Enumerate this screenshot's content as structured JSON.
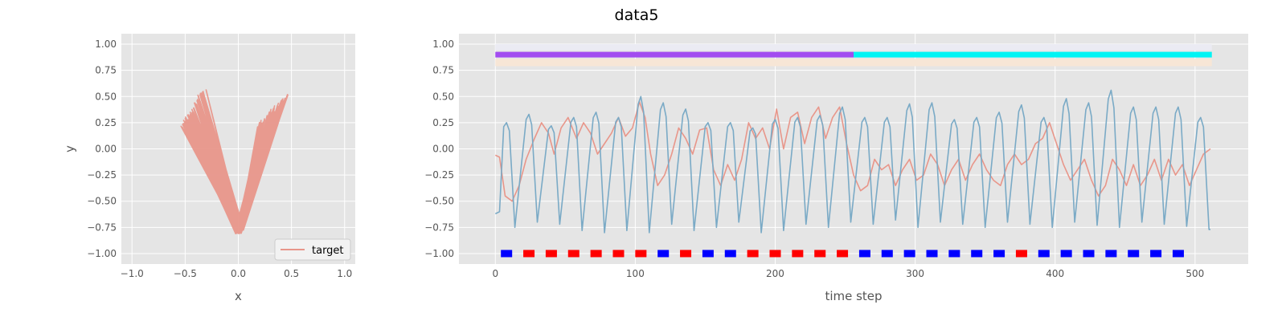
{
  "figure": {
    "title": "data5"
  },
  "colors": {
    "panel_bg": "#e5e5e5",
    "grid": "#ffffff",
    "target": "#e8968a",
    "series_blue": "#7aaac6",
    "phase_a": "#a24cf0",
    "phase_b": "#00f4f4",
    "band_top": "#ebebf3",
    "band_bottom": "#f7e6d6",
    "marker_red": "#ff0000",
    "marker_blue": "#0000ff"
  },
  "chart_data": [
    {
      "type": "line",
      "xlabel": "x",
      "ylabel": "y",
      "xlim": [
        -1.1,
        1.1
      ],
      "ylim": [
        -1.1,
        1.1
      ],
      "xticks": [
        "−1.0",
        "−0.5",
        "0.0",
        "0.5",
        "1.0"
      ],
      "yticks": [
        "−1.00",
        "−0.75",
        "−0.50",
        "−0.25",
        "0.00",
        "0.25",
        "0.50",
        "0.75",
        "1.00"
      ],
      "grid": true,
      "legend": {
        "placement": "lower-right",
        "entries": [
          "target"
        ]
      },
      "trajectory_summary": {
        "description_free": true,
        "left_arm_top_points": [
          [
            -0.52,
            0.26
          ],
          [
            -0.5,
            0.2
          ],
          [
            -0.42,
            0.4
          ],
          [
            -0.38,
            0.55
          ],
          [
            -0.35,
            0.45
          ]
        ],
        "vertex_points": [
          [
            0.0,
            -0.78
          ],
          [
            0.03,
            -0.8
          ],
          [
            -0.03,
            -0.7
          ]
        ],
        "right_arm_top_points": [
          [
            0.2,
            0.3
          ],
          [
            0.25,
            0.35
          ],
          [
            0.4,
            0.45
          ],
          [
            0.47,
            0.52
          ],
          [
            0.45,
            0.5
          ]
        ]
      },
      "series": [
        {
          "name": "target",
          "samples_x_range": [
            -0.52,
            0.47
          ],
          "samples_y_range": [
            -0.8,
            0.56
          ]
        }
      ]
    },
    {
      "type": "line",
      "xlabel": "time step",
      "ylabel": "",
      "xlim": [
        -26,
        538
      ],
      "ylim": [
        -1.1,
        1.1
      ],
      "xticks": [
        "0",
        "100",
        "200",
        "300",
        "400",
        "500"
      ],
      "yticks": [
        "−1.00",
        "−0.75",
        "−0.50",
        "−0.25",
        "0.00",
        "0.25",
        "0.50",
        "0.75",
        "1.00"
      ],
      "grid": true,
      "n_steps": 512,
      "phase_bar": {
        "y": 0.9,
        "segments": [
          {
            "from": 0,
            "to": 256,
            "color_key": "phase_a"
          },
          {
            "from": 256,
            "to": 512,
            "color_key": "phase_b"
          }
        ]
      },
      "bands": [
        {
          "from_y": 0.94,
          "to_y": 1.0,
          "color_key": "band_top"
        },
        {
          "from_y": 0.79,
          "to_y": 0.86,
          "color_key": "band_bottom"
        }
      ],
      "orange_series": {
        "name": "",
        "knots": [
          [
            0,
            -0.06
          ],
          [
            3,
            -0.08
          ],
          [
            7,
            -0.45
          ],
          [
            12,
            -0.5
          ],
          [
            17,
            -0.35
          ],
          [
            22,
            -0.1
          ],
          [
            28,
            0.1
          ],
          [
            33,
            0.25
          ],
          [
            38,
            0.15
          ],
          [
            42,
            -0.05
          ],
          [
            47,
            0.2
          ],
          [
            52,
            0.3
          ],
          [
            58,
            0.1
          ],
          [
            63,
            0.25
          ],
          [
            68,
            0.15
          ],
          [
            73,
            -0.05
          ],
          [
            78,
            0.05
          ],
          [
            83,
            0.15
          ],
          [
            88,
            0.3
          ],
          [
            93,
            0.12
          ],
          [
            98,
            0.2
          ],
          [
            103,
            0.45
          ],
          [
            107,
            0.3
          ],
          [
            111,
            -0.05
          ],
          [
            116,
            -0.35
          ],
          [
            121,
            -0.25
          ],
          [
            126,
            -0.05
          ],
          [
            131,
            0.2
          ],
          [
            136,
            0.1
          ],
          [
            141,
            -0.05
          ],
          [
            146,
            0.18
          ],
          [
            151,
            0.2
          ],
          [
            156,
            -0.2
          ],
          [
            161,
            -0.35
          ],
          [
            166,
            -0.15
          ],
          [
            171,
            -0.3
          ],
          [
            176,
            -0.1
          ],
          [
            181,
            0.25
          ],
          [
            186,
            0.1
          ],
          [
            191,
            0.2
          ],
          [
            196,
            0.0
          ],
          [
            201,
            0.38
          ],
          [
            206,
            0.0
          ],
          [
            211,
            0.3
          ],
          [
            216,
            0.35
          ],
          [
            221,
            0.05
          ],
          [
            226,
            0.3
          ],
          [
            231,
            0.4
          ],
          [
            236,
            0.1
          ],
          [
            241,
            0.3
          ],
          [
            246,
            0.4
          ],
          [
            251,
            0.05
          ],
          [
            256,
            -0.25
          ],
          [
            261,
            -0.4
          ],
          [
            266,
            -0.35
          ],
          [
            271,
            -0.1
          ],
          [
            276,
            -0.2
          ],
          [
            281,
            -0.15
          ],
          [
            286,
            -0.35
          ],
          [
            291,
            -0.2
          ],
          [
            296,
            -0.1
          ],
          [
            301,
            -0.3
          ],
          [
            306,
            -0.25
          ],
          [
            311,
            -0.05
          ],
          [
            316,
            -0.15
          ],
          [
            321,
            -0.35
          ],
          [
            326,
            -0.2
          ],
          [
            331,
            -0.1
          ],
          [
            336,
            -0.3
          ],
          [
            341,
            -0.15
          ],
          [
            346,
            -0.05
          ],
          [
            351,
            -0.2
          ],
          [
            356,
            -0.3
          ],
          [
            361,
            -0.35
          ],
          [
            366,
            -0.15
          ],
          [
            371,
            -0.05
          ],
          [
            376,
            -0.15
          ],
          [
            381,
            -0.1
          ],
          [
            386,
            0.05
          ],
          [
            391,
            0.1
          ],
          [
            396,
            0.25
          ],
          [
            401,
            0.05
          ],
          [
            406,
            -0.15
          ],
          [
            411,
            -0.3
          ],
          [
            416,
            -0.2
          ],
          [
            421,
            -0.1
          ],
          [
            426,
            -0.3
          ],
          [
            431,
            -0.45
          ],
          [
            436,
            -0.35
          ],
          [
            441,
            -0.1
          ],
          [
            446,
            -0.2
          ],
          [
            451,
            -0.35
          ],
          [
            456,
            -0.15
          ],
          [
            461,
            -0.35
          ],
          [
            466,
            -0.25
          ],
          [
            471,
            -0.1
          ],
          [
            476,
            -0.3
          ],
          [
            481,
            -0.1
          ],
          [
            486,
            -0.25
          ],
          [
            491,
            -0.15
          ],
          [
            496,
            -0.35
          ],
          [
            501,
            -0.2
          ],
          [
            506,
            -0.05
          ],
          [
            511,
            0.0
          ]
        ]
      },
      "blue_series": {
        "name": "",
        "period": 16,
        "start_value": -0.62,
        "end_value": -0.77,
        "peaks": [
          0.25,
          0.33,
          0.22,
          0.3,
          0.35,
          0.3,
          0.5,
          0.44,
          0.38,
          0.25,
          0.25,
          0.2,
          0.28,
          0.3,
          0.32,
          0.4,
          0.3,
          0.3,
          0.43,
          0.44,
          0.28,
          0.3,
          0.35,
          0.42,
          0.3,
          0.48,
          0.44,
          0.56,
          0.4,
          0.4,
          0.4,
          0.3
        ],
        "troughs": [
          -0.75,
          -0.7,
          -0.72,
          -0.78,
          -0.8,
          -0.78,
          -0.8,
          -0.72,
          -0.78,
          -0.75,
          -0.7,
          -0.8,
          -0.78,
          -0.72,
          -0.75,
          -0.7,
          -0.72,
          -0.68,
          -0.75,
          -0.7,
          -0.72,
          -0.75,
          -0.7,
          -0.72,
          -0.75,
          -0.7,
          -0.73,
          -0.75,
          -0.7,
          -0.72,
          -0.74,
          -0.77
        ]
      },
      "markers": {
        "y": -1.0,
        "start": 8,
        "spacing": 16,
        "colors": [
          "blue",
          "red",
          "red",
          "red",
          "red",
          "red",
          "red",
          "blue",
          "red",
          "blue",
          "blue",
          "red",
          "red",
          "red",
          "red",
          "red",
          "blue",
          "blue",
          "blue",
          "blue",
          "blue",
          "blue",
          "blue",
          "red",
          "blue",
          "blue",
          "blue",
          "blue",
          "blue",
          "blue",
          "blue"
        ]
      }
    }
  ]
}
